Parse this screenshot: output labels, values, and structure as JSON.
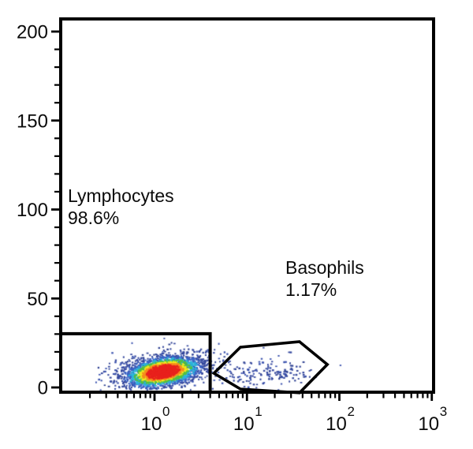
{
  "figure": {
    "background": "#ffffff",
    "axis_color": "#000000",
    "text_color": "#0b0b0b"
  },
  "chart_data": {
    "type": "scatter",
    "subtype": "flow-cytometry-density-dot-plot",
    "title": "",
    "grid": "off",
    "legend": "none",
    "x_axis": {
      "scale": "log10",
      "range_decades": [
        -1.015,
        3.02
      ],
      "major_ticks": [
        {
          "base": "10",
          "exponent": "0",
          "value": 1
        },
        {
          "base": "10",
          "exponent": "1",
          "value": 10
        },
        {
          "base": "10",
          "exponent": "2",
          "value": 100
        },
        {
          "base": "10",
          "exponent": "3",
          "value": 1000
        }
      ],
      "minor_tick_mantissas": [
        2,
        3,
        4,
        5,
        6,
        7,
        8,
        9
      ]
    },
    "y_axis": {
      "scale": "linear",
      "range": [
        -2.7,
        207
      ],
      "major_ticks": [
        {
          "label": "0",
          "value": 0
        },
        {
          "label": "50",
          "value": 50
        },
        {
          "label": "100",
          "value": 100
        },
        {
          "label": "150",
          "value": 150
        },
        {
          "label": "200",
          "value": 200
        }
      ],
      "minor_tick_step": 10
    },
    "gates": [
      {
        "name": "lymphocytes",
        "label": "Lymphocytes",
        "percent": "98.6%",
        "shape": "rectangle",
        "x_range": [
          0.0966,
          4.0
        ],
        "y_range": [
          -2.7,
          30.2
        ]
      },
      {
        "name": "basophils",
        "label": "Basophils",
        "percent": "1.17%",
        "shape": "polygon",
        "points_xy": [
          [
            4.4,
            8.0
          ],
          [
            8.5,
            22.6
          ],
          [
            37,
            25.7
          ],
          [
            74,
            12.9
          ],
          [
            37,
            -3.0
          ],
          [
            8.5,
            -0.9
          ]
        ]
      }
    ],
    "populations": [
      {
        "name": "lymphocytes-halo",
        "style": "sparse",
        "n": 680,
        "mean_log10_x": 0.1,
        "sd_log10_x": 0.3,
        "mean_y": 9.3,
        "sd_y": 5.6,
        "correlation": 0.35
      },
      {
        "name": "debris-left",
        "style": "sparse",
        "n": 22,
        "mean_log10_x": -0.32,
        "sd_log10_x": 0.13,
        "mean_y": 5.5,
        "sd_y": 3.2,
        "correlation": 0.0
      },
      {
        "name": "basophils",
        "style": "sparse",
        "n": 165,
        "mean_log10_x": 1.16,
        "sd_log10_x": 0.27,
        "mean_y": 8.5,
        "sd_y": 4.0,
        "correlation": 0.05
      },
      {
        "name": "lymphocytes-core",
        "style": "density",
        "n": 2600,
        "mean_log10_x": 0.09,
        "sd_log10_x": 0.185,
        "mean_y": 8.8,
        "sd_y": 4.0,
        "correlation": 0.35
      }
    ],
    "density_palette": [
      {
        "min_density": 0.8,
        "color": "#e8211d"
      },
      {
        "min_density": 0.62,
        "color": "#f68c1e"
      },
      {
        "min_density": 0.46,
        "color": "#f3e81f"
      },
      {
        "min_density": 0.3,
        "color": "#53c03c"
      },
      {
        "min_density": 0.17,
        "color": "#2ab5dc"
      },
      {
        "min_density": 0.07,
        "color": "#3a63c6"
      },
      {
        "min_density": 0.0,
        "color": "#35489e"
      }
    ],
    "sparse_dot_colors": [
      "#35489e",
      "#3a52ae",
      "#2e4192"
    ]
  }
}
